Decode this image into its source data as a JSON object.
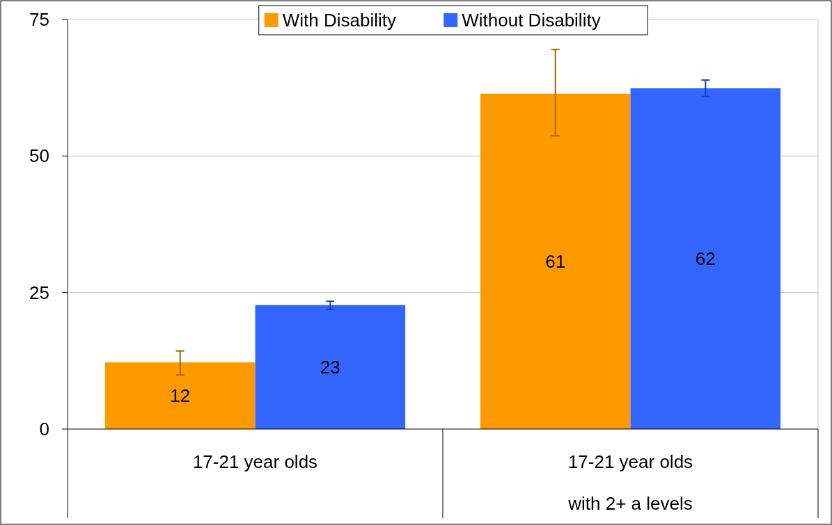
{
  "chart_data": {
    "type": "bar",
    "categories": [
      "17-21 year olds",
      "17-21 year olds\nwith 2+ a levels"
    ],
    "series": [
      {
        "name": "With Disability",
        "color": "#ff9900",
        "values": [
          12.2,
          61.4
        ],
        "value_labels": [
          "12",
          "61"
        ],
        "errors": [
          [
            9.9,
            14.3
          ],
          [
            53.7,
            69.5
          ]
        ]
      },
      {
        "name": "Without Disability",
        "color": "#3366ff",
        "values": [
          22.7,
          62.4
        ],
        "value_labels": [
          "23",
          "62"
        ],
        "errors": [
          [
            21.9,
            23.4
          ],
          [
            60.9,
            63.9
          ]
        ]
      }
    ],
    "ylim": [
      0,
      75
    ],
    "yticks": [
      0,
      25,
      50,
      75
    ],
    "grid": "y",
    "legend": "top"
  }
}
